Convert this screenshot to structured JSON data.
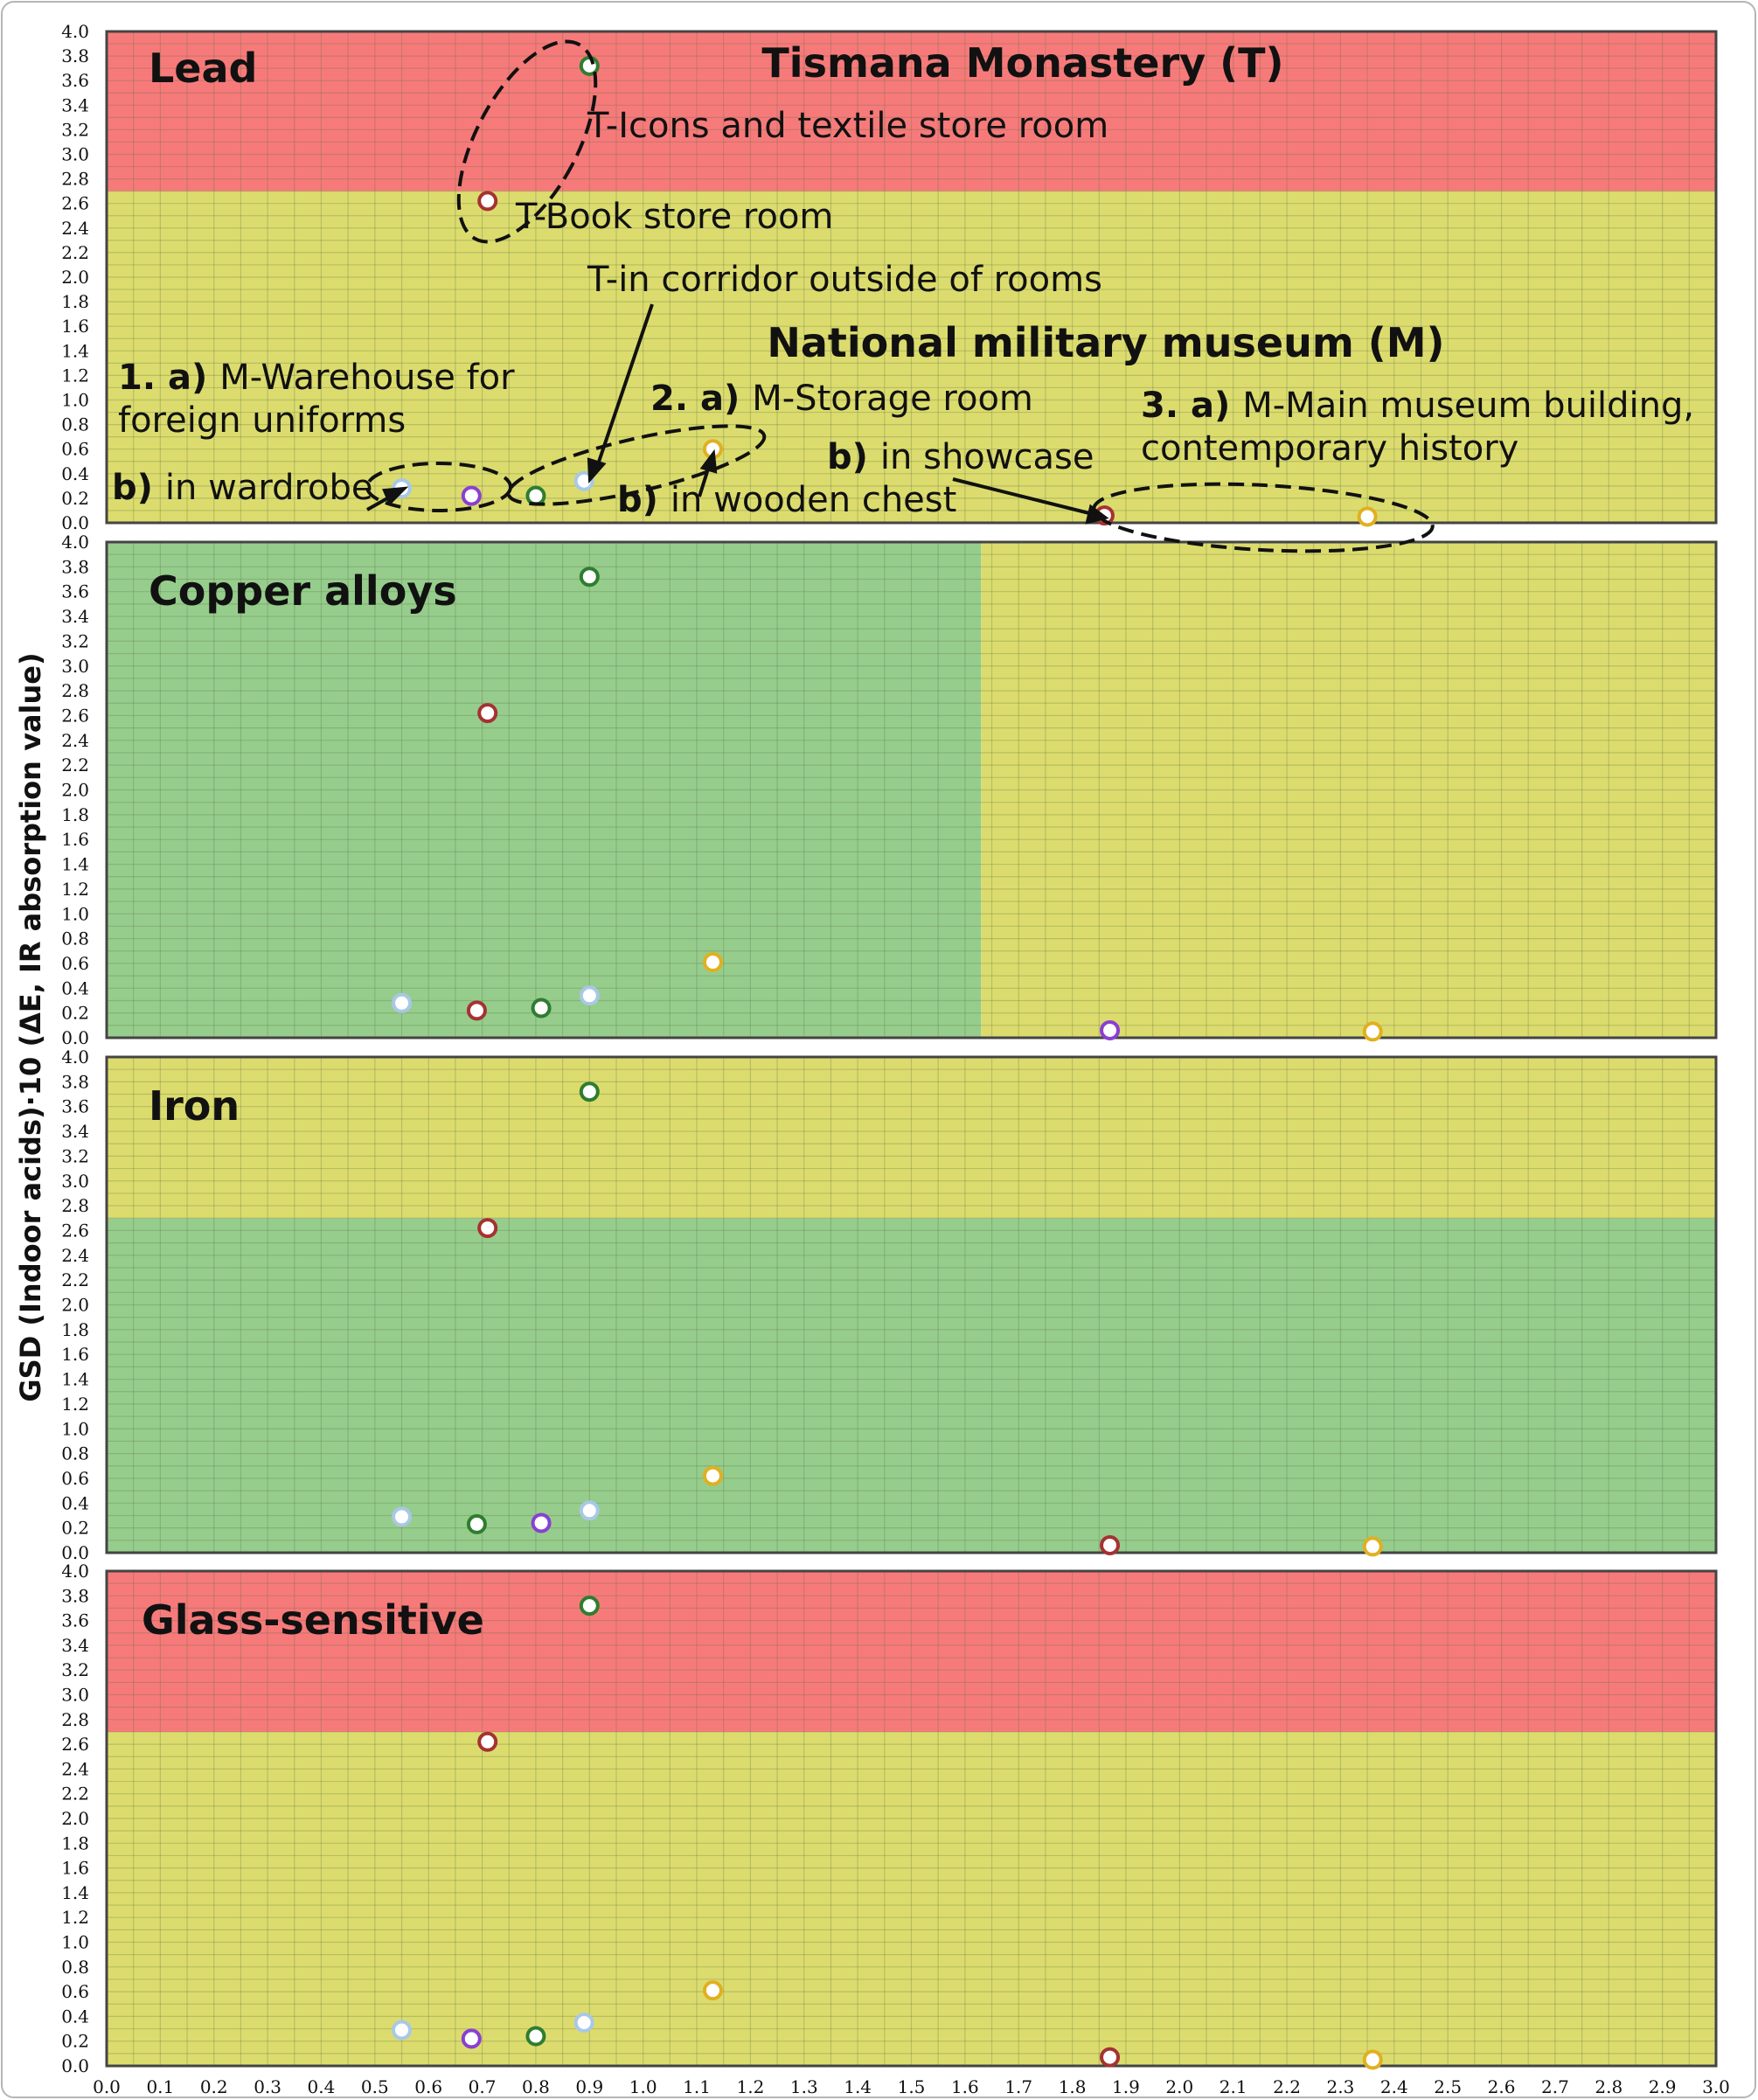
{
  "chart_data": {
    "type": "scatter",
    "ylabel": "GSD (Indoor acids)·10 (ΔE, IR absorption value)",
    "xlabel": "",
    "xlim": [
      0.0,
      3.0
    ],
    "ylim": [
      0.0,
      4.0
    ],
    "x_ticks": [
      "0.0",
      "0.1",
      "0.2",
      "0.3",
      "0.4",
      "0.5",
      "0.6",
      "0.7",
      "0.8",
      "0.9",
      "1.0",
      "1.1",
      "1.2",
      "1.3",
      "1.4",
      "1.5",
      "1.6",
      "1.7",
      "1.8",
      "1.9",
      "2.0",
      "2.1",
      "2.2",
      "2.3",
      "2.4",
      "2.5",
      "2.6",
      "2.7",
      "2.8",
      "2.9",
      "3.0"
    ],
    "y_ticks": [
      "0.0",
      "0.2",
      "0.4",
      "0.6",
      "0.8",
      "1.0",
      "1.2",
      "1.4",
      "1.6",
      "1.8",
      "2.0",
      "2.2",
      "2.4",
      "2.6",
      "2.8",
      "3.0",
      "3.2",
      "3.4",
      "3.6",
      "3.8",
      "4.0"
    ],
    "grid": true,
    "colors": {
      "red_zone": "#f77a7a",
      "yellow_zone": "#dcdc6e",
      "green_zone": "#96cd8c",
      "point_green": "#2f7d2f",
      "point_red": "#a53232",
      "point_lightblue": "#a8c8e6",
      "point_purple": "#8a3fd1",
      "point_yellow": "#e0b020",
      "point_fill": "#ffffff"
    },
    "panels": [
      {
        "title": "Lead",
        "zones": [
          {
            "color": "yellow",
            "x": [
              0.0,
              3.0
            ],
            "y": [
              0.0,
              2.7
            ]
          },
          {
            "color": "red",
            "x": [
              0.0,
              3.0
            ],
            "y": [
              2.7,
              4.0
            ]
          }
        ],
        "points": [
          {
            "x": 0.9,
            "y": 3.72,
            "color": "green"
          },
          {
            "x": 0.71,
            "y": 2.62,
            "color": "red"
          },
          {
            "x": 0.55,
            "y": 0.28,
            "color": "lightblue"
          },
          {
            "x": 0.68,
            "y": 0.22,
            "color": "purple"
          },
          {
            "x": 0.8,
            "y": 0.22,
            "color": "green"
          },
          {
            "x": 0.89,
            "y": 0.34,
            "color": "lightblue"
          },
          {
            "x": 1.13,
            "y": 0.6,
            "color": "yellow"
          },
          {
            "x": 1.86,
            "y": 0.06,
            "color": "red"
          },
          {
            "x": 2.35,
            "y": 0.05,
            "color": "yellow"
          }
        ]
      },
      {
        "title": "Copper alloys",
        "zones": [
          {
            "color": "green",
            "x": [
              0.0,
              1.63
            ],
            "y": [
              0.0,
              4.0
            ]
          },
          {
            "color": "yellow",
            "x": [
              1.63,
              3.0
            ],
            "y": [
              0.0,
              4.0
            ]
          }
        ],
        "points": [
          {
            "x": 0.9,
            "y": 3.72,
            "color": "green"
          },
          {
            "x": 0.71,
            "y": 2.62,
            "color": "red"
          },
          {
            "x": 0.55,
            "y": 0.28,
            "color": "lightblue"
          },
          {
            "x": 0.69,
            "y": 0.22,
            "color": "red"
          },
          {
            "x": 0.81,
            "y": 0.24,
            "color": "green"
          },
          {
            "x": 0.9,
            "y": 0.34,
            "color": "lightblue"
          },
          {
            "x": 1.13,
            "y": 0.61,
            "color": "yellow"
          },
          {
            "x": 1.87,
            "y": 0.06,
            "color": "purple"
          },
          {
            "x": 2.36,
            "y": 0.05,
            "color": "yellow"
          }
        ]
      },
      {
        "title": "Iron",
        "zones": [
          {
            "color": "green",
            "x": [
              0.0,
              3.0
            ],
            "y": [
              0.0,
              2.7
            ]
          },
          {
            "color": "yellow",
            "x": [
              0.0,
              3.0
            ],
            "y": [
              2.7,
              4.0
            ]
          }
        ],
        "points": [
          {
            "x": 0.9,
            "y": 3.72,
            "color": "green"
          },
          {
            "x": 0.71,
            "y": 2.62,
            "color": "red"
          },
          {
            "x": 0.55,
            "y": 0.29,
            "color": "lightblue"
          },
          {
            "x": 0.69,
            "y": 0.23,
            "color": "green"
          },
          {
            "x": 0.81,
            "y": 0.24,
            "color": "purple"
          },
          {
            "x": 0.9,
            "y": 0.34,
            "color": "lightblue"
          },
          {
            "x": 1.13,
            "y": 0.62,
            "color": "yellow"
          },
          {
            "x": 1.87,
            "y": 0.06,
            "color": "red"
          },
          {
            "x": 2.36,
            "y": 0.05,
            "color": "yellow"
          }
        ]
      },
      {
        "title": "Glass-sensitive",
        "zones": [
          {
            "color": "yellow",
            "x": [
              0.0,
              3.0
            ],
            "y": [
              0.0,
              2.7
            ]
          },
          {
            "color": "red",
            "x": [
              0.0,
              3.0
            ],
            "y": [
              2.7,
              4.0
            ]
          }
        ],
        "points": [
          {
            "x": 0.9,
            "y": 3.72,
            "color": "green"
          },
          {
            "x": 0.71,
            "y": 2.62,
            "color": "red"
          },
          {
            "x": 0.55,
            "y": 0.29,
            "color": "lightblue"
          },
          {
            "x": 0.68,
            "y": 0.22,
            "color": "purple"
          },
          {
            "x": 0.8,
            "y": 0.24,
            "color": "green"
          },
          {
            "x": 0.89,
            "y": 0.35,
            "color": "lightblue"
          },
          {
            "x": 1.13,
            "y": 0.61,
            "color": "yellow"
          },
          {
            "x": 1.87,
            "y": 0.07,
            "color": "red"
          },
          {
            "x": 2.36,
            "y": 0.05,
            "color": "yellow"
          }
        ]
      }
    ],
    "annotations": {
      "tismana": "Tismana Monastery (T)",
      "t_icons": "T-Icons and textile store room",
      "t_book": "T-Book store room",
      "t_corridor": "T-in corridor outside of rooms",
      "national": "National military museum (M)",
      "m1_num": "1. a)",
      "m1_text": "M-Warehouse for",
      "m1_text2": "foreign uniforms",
      "m1b_num": "b)",
      "m1b_text": "in wardrobe",
      "m2_num": "2. a)",
      "m2_text": "M-Storage room",
      "m2b_num": "b)",
      "m2b_text": "in wooden chest",
      "m3b_num": "b)",
      "m3b_text": "in showcase",
      "m3_num": "3. a)",
      "m3_text": "M-Main museum building,",
      "m3_text2": "contemporary history"
    }
  }
}
